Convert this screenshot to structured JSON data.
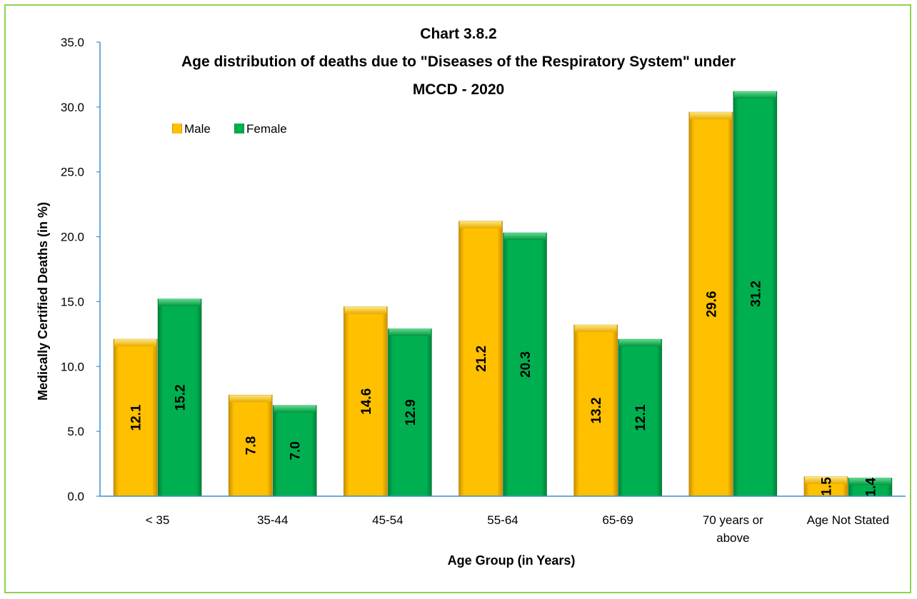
{
  "chart_data": {
    "type": "bar",
    "title_lines": [
      "Chart 3.8.2",
      "Age distribution of deaths due to \"Diseases of the Respiratory System\" under",
      "MCCD - 2020"
    ],
    "xlabel": "Age Group (in Years)",
    "ylabel": "Medically Certified Deaths (in %)",
    "ylim": [
      0,
      35
    ],
    "y_ticks": [
      "0.0",
      "5.0",
      "10.0",
      "15.0",
      "20.0",
      "25.0",
      "30.0",
      "35.0"
    ],
    "categories": [
      [
        "< 35"
      ],
      [
        "35-44"
      ],
      [
        "45-54"
      ],
      [
        "55-64"
      ],
      [
        "65-69"
      ],
      [
        "70 years or",
        "above"
      ],
      [
        "Age Not Stated"
      ]
    ],
    "series": [
      {
        "name": "Male",
        "color": "#ffc000",
        "values": [
          12.1,
          7.8,
          14.6,
          21.2,
          13.2,
          29.6,
          1.5
        ]
      },
      {
        "name": "Female",
        "color": "#00b050",
        "values": [
          15.2,
          7.0,
          12.9,
          20.3,
          12.1,
          31.2,
          1.4
        ]
      }
    ],
    "data_labels": [
      [
        "12.1",
        "7.8",
        "14.6",
        "21.2",
        "13.2",
        "29.6",
        "1.5"
      ],
      [
        "15.2",
        "7.0",
        "12.9",
        "20.3",
        "12.1",
        "31.2",
        "1.4"
      ]
    ],
    "legend_position": "top-left",
    "grid": false
  }
}
